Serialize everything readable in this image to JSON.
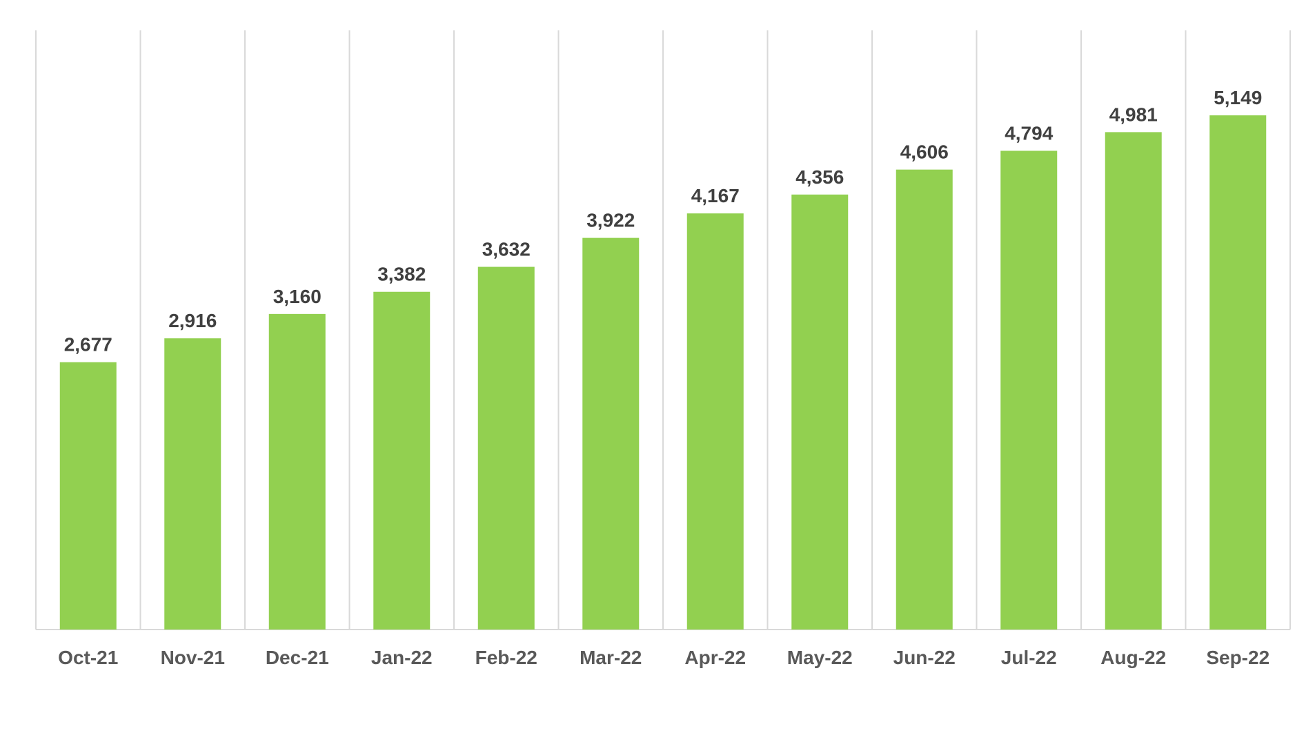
{
  "chart_data": {
    "type": "bar",
    "categories": [
      "Oct-21",
      "Nov-21",
      "Dec-21",
      "Jan-22",
      "Feb-22",
      "Mar-22",
      "Apr-22",
      "May-22",
      "Jun-22",
      "Jul-22",
      "Aug-22",
      "Sep-22"
    ],
    "values": [
      2677,
      2916,
      3160,
      3382,
      3632,
      3922,
      4167,
      4356,
      4606,
      4794,
      4981,
      5149
    ],
    "value_labels": [
      "2,677",
      "2,916",
      "3,160",
      "3,382",
      "3,632",
      "3,922",
      "4,167",
      "4,356",
      "4,606",
      "4,794",
      "4,981",
      "5,149"
    ],
    "title": "",
    "xlabel": "",
    "ylabel": "",
    "ylim": [
      0,
      6000
    ],
    "grid": "vertical",
    "legend": "none",
    "bar_color": "#92d050",
    "label_color": "#404040",
    "grid_color": "#d9d9d9"
  }
}
